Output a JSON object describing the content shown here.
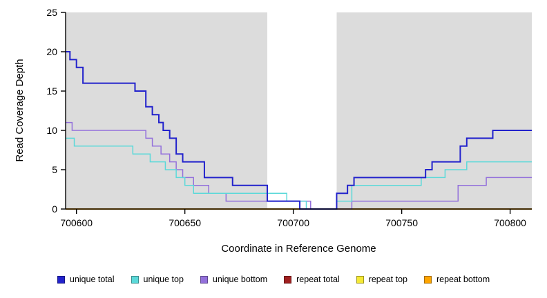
{
  "x_axis": {
    "label": "Coordinate in Reference Genome"
  },
  "y_axis": {
    "label": "Read Coverage Depth"
  },
  "chart_data": {
    "type": "line",
    "subtype": "step",
    "title": "",
    "xlabel": "Coordinate in Reference Genome",
    "ylabel": "Read Coverage Depth",
    "xlim": [
      700595,
      700810
    ],
    "ylim": [
      0,
      25
    ],
    "x_ticks": [
      700600,
      700650,
      700700,
      700750,
      700800
    ],
    "y_ticks": [
      0,
      5,
      10,
      15,
      20,
      25
    ],
    "grid": "off",
    "legend_position": "bottom",
    "colors": {
      "panel_shade": "#dcdcdc",
      "axis": "#000000"
    },
    "shaded_regions": [
      [
        700595,
        700688
      ],
      [
        700720,
        700810
      ]
    ],
    "series": [
      {
        "name": "unique total",
        "color": "#2222cc",
        "width": 2,
        "points": [
          [
            700595,
            20
          ],
          [
            700597,
            19
          ],
          [
            700600,
            18
          ],
          [
            700603,
            16
          ],
          [
            700627,
            15
          ],
          [
            700632,
            13
          ],
          [
            700635,
            12
          ],
          [
            700638,
            11
          ],
          [
            700640,
            10
          ],
          [
            700643,
            9
          ],
          [
            700646,
            7
          ],
          [
            700649,
            6
          ],
          [
            700659,
            4
          ],
          [
            700672,
            3
          ],
          [
            700688,
            1
          ],
          [
            700703,
            0
          ],
          [
            700720,
            2
          ],
          [
            700725,
            3
          ],
          [
            700728,
            4
          ],
          [
            700761,
            5
          ],
          [
            700764,
            6
          ],
          [
            700777,
            8
          ],
          [
            700780,
            9
          ],
          [
            700792,
            10
          ]
        ]
      },
      {
        "name": "unique top",
        "color": "#5bd9d9",
        "width": 1.5,
        "points": [
          [
            700595,
            9
          ],
          [
            700599,
            8
          ],
          [
            700626,
            7
          ],
          [
            700634,
            6
          ],
          [
            700641,
            5
          ],
          [
            700646,
            4
          ],
          [
            700650,
            3
          ],
          [
            700654,
            2
          ],
          [
            700690,
            2
          ],
          [
            700697,
            1
          ],
          [
            700706,
            0
          ],
          [
            700720,
            1
          ],
          [
            700727,
            3
          ],
          [
            700759,
            4
          ],
          [
            700770,
            5
          ],
          [
            700780,
            6
          ]
        ]
      },
      {
        "name": "unique bottom",
        "color": "#9370db",
        "width": 1.5,
        "points": [
          [
            700595,
            11
          ],
          [
            700598,
            10
          ],
          [
            700632,
            9
          ],
          [
            700635,
            8
          ],
          [
            700639,
            7
          ],
          [
            700643,
            6
          ],
          [
            700646,
            5
          ],
          [
            700649,
            4
          ],
          [
            700654,
            3
          ],
          [
            700661,
            2
          ],
          [
            700669,
            1
          ],
          [
            700699,
            1
          ],
          [
            700708,
            0
          ],
          [
            700727,
            1
          ],
          [
            700776,
            3
          ],
          [
            700789,
            4
          ]
        ]
      },
      {
        "name": "repeat total",
        "color": "#a02020",
        "width": 1.5,
        "points": [
          [
            700595,
            0
          ]
        ]
      },
      {
        "name": "repeat top",
        "color": "#f5e935",
        "width": 1.5,
        "points": [
          [
            700595,
            0
          ]
        ]
      },
      {
        "name": "repeat bottom",
        "color": "#ffa500",
        "width": 2,
        "points": [
          [
            700595,
            0
          ]
        ]
      }
    ]
  }
}
